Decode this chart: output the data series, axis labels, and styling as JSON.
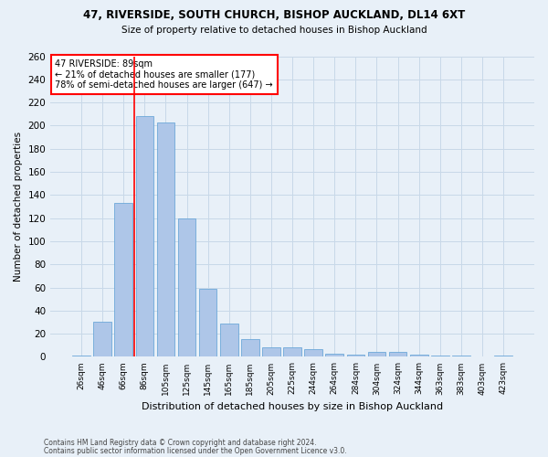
{
  "title_line1": "47, RIVERSIDE, SOUTH CHURCH, BISHOP AUCKLAND, DL14 6XT",
  "title_line2": "Size of property relative to detached houses in Bishop Auckland",
  "xlabel": "Distribution of detached houses by size in Bishop Auckland",
  "ylabel": "Number of detached properties",
  "footnote1": "Contains HM Land Registry data © Crown copyright and database right 2024.",
  "footnote2": "Contains public sector information licensed under the Open Government Licence v3.0.",
  "categories": [
    "26sqm",
    "46sqm",
    "66sqm",
    "86sqm",
    "105sqm",
    "125sqm",
    "145sqm",
    "165sqm",
    "185sqm",
    "205sqm",
    "225sqm",
    "244sqm",
    "264sqm",
    "284sqm",
    "304sqm",
    "324sqm",
    "344sqm",
    "363sqm",
    "383sqm",
    "403sqm",
    "423sqm"
  ],
  "values": [
    1,
    30,
    133,
    208,
    203,
    120,
    59,
    29,
    15,
    8,
    8,
    7,
    3,
    2,
    4,
    4,
    2,
    1,
    1,
    0,
    1
  ],
  "bar_color": "#aec6e8",
  "bar_edge_color": "#5a9fd4",
  "grid_color": "#c8d8e8",
  "background_color": "#e8f0f8",
  "vline_index": 3,
  "vline_color": "red",
  "annotation_text": "47 RIVERSIDE: 89sqm\n← 21% of detached houses are smaller (177)\n78% of semi-detached houses are larger (647) →",
  "annotation_box_color": "white",
  "annotation_box_edge": "red",
  "ylim": [
    0,
    260
  ],
  "yticks": [
    0,
    20,
    40,
    60,
    80,
    100,
    120,
    140,
    160,
    180,
    200,
    220,
    240,
    260
  ]
}
